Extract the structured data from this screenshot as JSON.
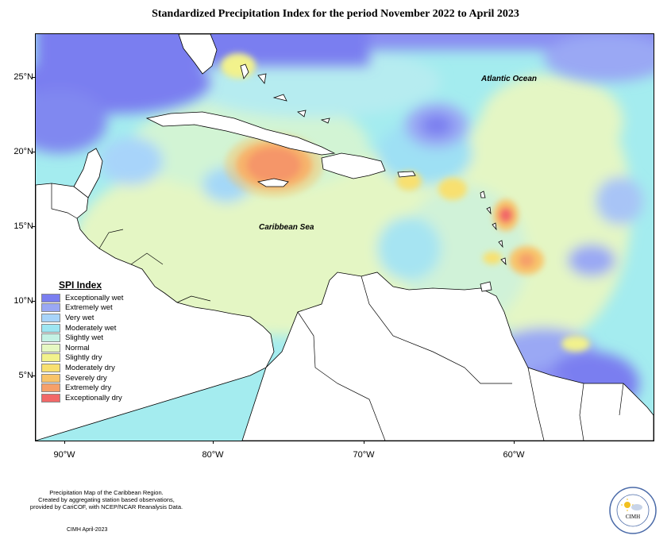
{
  "title": "Standardized Precipitation Index for the period November 2022 to April 2023",
  "latitude_labels": [
    "25°N",
    "20°N",
    "15°N",
    "10°N",
    "5°N"
  ],
  "longitude_labels": [
    "90°W",
    "80°W",
    "70°W",
    "60°W"
  ],
  "ocean_labels": {
    "atlantic": "Atlantic Ocean",
    "caribbean": "Caribbean Sea"
  },
  "legend": {
    "title": "SPI Index",
    "items": [
      {
        "label": "Exceptionally wet",
        "color": "#7a7ef0"
      },
      {
        "label": "Extremely wet",
        "color": "#9aa8f4"
      },
      {
        "label": "Very wet",
        "color": "#a8d4fa"
      },
      {
        "label": "Moderately wet",
        "color": "#9ee6f2"
      },
      {
        "label": "Slightly wet",
        "color": "#c4f2e4"
      },
      {
        "label": "Normal",
        "color": "#e6f8c2"
      },
      {
        "label": "Slightly dry",
        "color": "#f2f28c"
      },
      {
        "label": "Moderately dry",
        "color": "#f8e070"
      },
      {
        "label": "Severely dry",
        "color": "#f8c46a"
      },
      {
        "label": "Extremely dry",
        "color": "#f6a06a"
      },
      {
        "label": "Exceptionally dry",
        "color": "#f26868"
      }
    ]
  },
  "footer": {
    "line1": "Precipitation Map of the Caribbean Region.",
    "line2": "Created by aggregating station based observations,",
    "line3": "provided by CariCOF, with NCEP/NCAR Reanalysis Data.",
    "date": "CIMH April-2023"
  },
  "logo": {
    "text": "CIMH",
    "icon": "sun-cloud-icon"
  }
}
